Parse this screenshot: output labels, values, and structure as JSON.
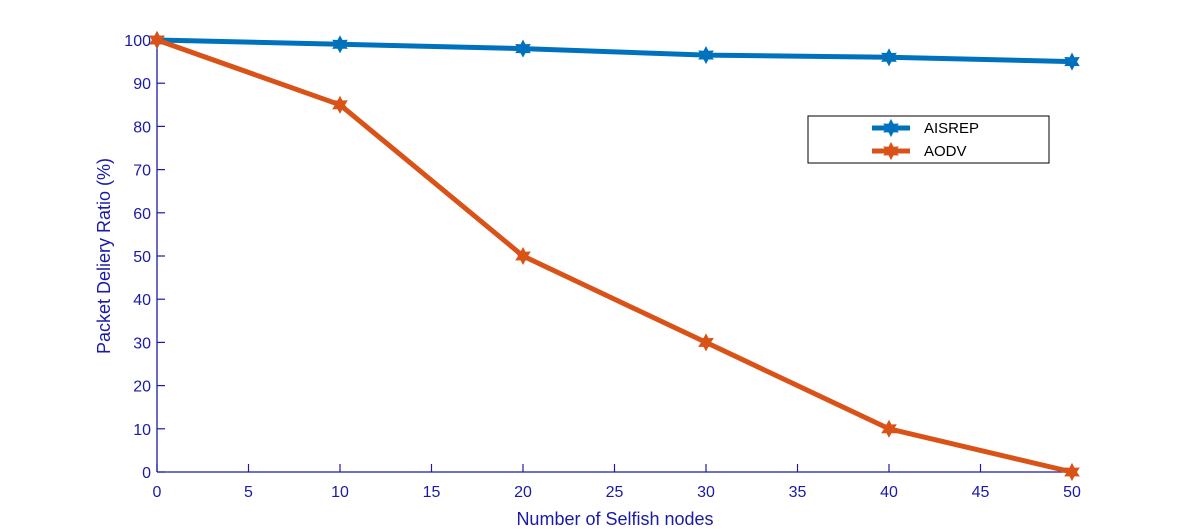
{
  "chart_data": {
    "type": "line",
    "title": "",
    "xlabel": "Number of Selfish nodes",
    "ylabel": "Packet Deliery Ratio (%)",
    "x": [
      0,
      10,
      20,
      30,
      40,
      50
    ],
    "xlim": [
      0,
      50
    ],
    "ylim": [
      0,
      100
    ],
    "xticks": [
      0,
      5,
      10,
      15,
      20,
      25,
      30,
      35,
      40,
      45,
      50
    ],
    "yticks": [
      0,
      10,
      20,
      30,
      40,
      50,
      60,
      70,
      80,
      90,
      100
    ],
    "grid": false,
    "legend_position": "upper right (inside)",
    "series": [
      {
        "name": "AISREP",
        "color": "#0072bd",
        "marker": "hexagram",
        "values": [
          100,
          99,
          98,
          96.5,
          96,
          95
        ]
      },
      {
        "name": "AODV",
        "color": "#d95319",
        "marker": "hexagram",
        "values": [
          100,
          85,
          50,
          30,
          10,
          0
        ]
      }
    ]
  },
  "colors": {
    "axis": "#1a1aa6",
    "background": "#ffffff"
  }
}
